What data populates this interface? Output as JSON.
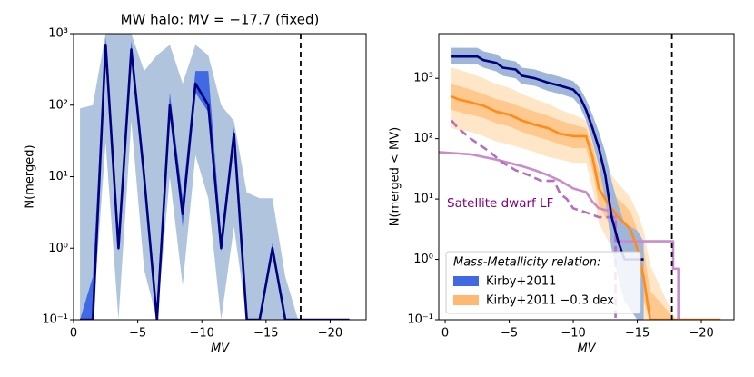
{
  "chart_data": [
    {
      "type": "line",
      "title": "MW halo: MV = −17.7 (fixed)",
      "xlabel": "MV",
      "ylabel": "N(merged)",
      "yscale": "log",
      "xlim": [
        0,
        -22.8
      ],
      "ylim": [
        0.1,
        1000
      ],
      "xticks": [
        0,
        {
          "value": -5,
          "label": "−5"
        },
        {
          "value": -10,
          "label": "−10"
        },
        {
          "value": -15,
          "label": "−15"
        },
        {
          "value": -20,
          "label": "−20"
        }
      ],
      "yticks": [
        {
          "value": 0.1,
          "label": "10⁻¹"
        },
        {
          "value": 1,
          "label": "10⁰"
        },
        {
          "value": 10,
          "label": "10¹"
        },
        {
          "value": 100,
          "label": "10²"
        },
        {
          "value": 1000,
          "label": "10³"
        }
      ],
      "vline": -17.7,
      "bands": [
        {
          "color": "#b0c4de",
          "x": [
            -0.5,
            -1.5,
            -2.5,
            -3.5,
            -4.5,
            -5.5,
            -6.5,
            -7.5,
            -8.5,
            -9.5,
            -10.5,
            -11.5,
            -12.5,
            -13.5,
            -14.5,
            -15.5,
            -16.5,
            -17.5,
            -18.5,
            -19.5,
            -20.5,
            -21.5
          ],
          "upper": [
            90,
            100,
            1000,
            1000,
            1000,
            300,
            500,
            700,
            200,
            700,
            500,
            100,
            60,
            6,
            5,
            5,
            0.4,
            0.1,
            0.1,
            0.1,
            0.1,
            0.1
          ],
          "lower": [
            0.1,
            0.1,
            30,
            0.1,
            60,
            0.5,
            0.1,
            10,
            0.3,
            20,
            5,
            0.1,
            2,
            0.1,
            0.1,
            0.1,
            0.1,
            0.1,
            0.1,
            0.1,
            0.1,
            0.1
          ]
        },
        {
          "color": "#4169e1",
          "x": [
            -0.5,
            -1.5,
            -2.5,
            -3.5,
            -4.5,
            -5.5,
            -6.5,
            -7.5,
            -8.5,
            -9.5,
            -10.5,
            -11.5,
            -12.5,
            -13.5,
            -14.5,
            -15.5,
            -16.5,
            -17.5,
            -18.5,
            -19.5,
            -20.5,
            -21.5
          ],
          "upper": [
            0.1,
            0.4,
            900,
            1.2,
            800,
            15,
            0.1,
            150,
            5,
            300,
            300,
            1.5,
            50,
            0.1,
            0.1,
            1.2,
            0.1,
            0.1,
            0.1,
            0.1,
            0.1,
            0.1
          ],
          "lower": [
            0.1,
            0.1,
            500,
            0.9,
            450,
            8,
            0.1,
            80,
            2,
            150,
            80,
            0.9,
            30,
            0.1,
            0.1,
            0.9,
            0.1,
            0.1,
            0.1,
            0.1,
            0.1,
            0.1
          ]
        }
      ],
      "series": [
        {
          "color": "#000080",
          "x": [
            -0.5,
            -1.5,
            -2.5,
            -3.5,
            -4.5,
            -5.5,
            -6.5,
            -7.5,
            -8.5,
            -9.5,
            -10.5,
            -11.5,
            -12.5,
            -13.5,
            -14.5,
            -15.5,
            -16.5,
            -17.5,
            -18.5,
            -19.5,
            -20.5,
            -21.5
          ],
          "values": [
            0.1,
            0.1,
            700,
            1,
            600,
            10,
            0.1,
            100,
            3,
            200,
            100,
            1,
            40,
            0.1,
            0.1,
            1,
            0.1,
            0.1,
            0.1,
            0.1,
            0.1,
            0.1
          ]
        }
      ]
    },
    {
      "type": "line",
      "xlabel": "MV",
      "ylabel": "N(merged < MV)",
      "yscale": "log",
      "xlim": [
        0.5,
        -22.55
      ],
      "ylim": [
        0.1,
        5500
      ],
      "xticks": [
        0,
        {
          "value": -5,
          "label": "−5"
        },
        {
          "value": -10,
          "label": "−10"
        },
        {
          "value": -15,
          "label": "−15"
        },
        {
          "value": -20,
          "label": "−20"
        }
      ],
      "yticks": [
        {
          "value": 0.1,
          "label": "10⁻¹"
        },
        {
          "value": 1,
          "label": "10⁰"
        },
        {
          "value": 10,
          "label": "10¹"
        },
        {
          "value": 100,
          "label": "10²"
        },
        {
          "value": 1000,
          "label": "10³"
        }
      ],
      "vline": -17.7,
      "annotation": "Satellite dwarf LF",
      "legend": {
        "title": "Mass-Metallicity relation:",
        "position": "lower left",
        "entries": [
          {
            "name": "Kirby+2011",
            "color": "#4169e1"
          },
          {
            "name": "Kirby+2011 −0.3 dex",
            "color": "#ffb870"
          }
        ]
      },
      "bands": [
        {
          "color": "#ffe6c7",
          "x": [
            -0.5,
            -1,
            -2,
            -3,
            -4,
            -5,
            -6,
            -7,
            -8,
            -9,
            -10,
            -11,
            -11.5,
            -12,
            -12.5,
            -13,
            -13.5,
            -14,
            -14.5,
            -15,
            -15.5,
            -16,
            -18,
            -21.5
          ],
          "upper": [
            1500,
            1400,
            1200,
            1000,
            800,
            700,
            550,
            450,
            380,
            300,
            250,
            200,
            120,
            50,
            35,
            25,
            18,
            14,
            10,
            6,
            3,
            0.8,
            0.1,
            0.1
          ],
          "lower": [
            150,
            140,
            130,
            110,
            90,
            80,
            70,
            60,
            50,
            45,
            40,
            40,
            15,
            4,
            2.5,
            1.5,
            1,
            0.8,
            0.5,
            0.2,
            0.1,
            0.1,
            0.1,
            0.1
          ]
        },
        {
          "color": "#ffc88f",
          "x": [
            -0.5,
            -1,
            -2,
            -3,
            -4,
            -5,
            -6,
            -7,
            -8,
            -9,
            -10,
            -11,
            -11.5,
            -12,
            -12.5,
            -13,
            -13.5,
            -14,
            -14.5,
            -15,
            -15.5,
            -16,
            -18,
            -21.5
          ],
          "upper": [
            800,
            750,
            650,
            550,
            450,
            400,
            330,
            280,
            240,
            200,
            170,
            150,
            80,
            30,
            20,
            14,
            10,
            8,
            6,
            3,
            1.5,
            0.3,
            0.1,
            0.1
          ],
          "lower": [
            300,
            280,
            250,
            220,
            180,
            160,
            130,
            110,
            95,
            80,
            70,
            70,
            30,
            8,
            5,
            3.5,
            2.5,
            2,
            1.5,
            0.7,
            0.2,
            0.1,
            0.1,
            0.1
          ]
        },
        {
          "color": "#9fb6d9",
          "x": [
            -0.5,
            -2.5,
            -3,
            -4,
            -4.5,
            -5.5,
            -6,
            -7,
            -8,
            -9,
            -10,
            -10.5,
            -11,
            -11.5,
            -12,
            -12.5,
            -13,
            -13.5,
            -14,
            -15,
            -15.5
          ],
          "upper": [
            3200,
            3200,
            2800,
            2500,
            2100,
            1900,
            1500,
            1400,
            1200,
            1050,
            900,
            700,
            450,
            250,
            130,
            60,
            20,
            8,
            4,
            3,
            2
          ],
          "lower": [
            1700,
            1700,
            1500,
            1300,
            1100,
            1000,
            800,
            750,
            620,
            550,
            470,
            350,
            200,
            90,
            35,
            10,
            1.5,
            0.5,
            0.2,
            0.1,
            0.1
          ]
        }
      ],
      "series": [
        {
          "color": "#c88ccd",
          "x": [
            0.5,
            -2,
            -4,
            -6,
            -7,
            -8,
            -9,
            -10,
            -11,
            -11.5,
            -12,
            -13.3,
            -13.3,
            -17.8,
            -17.8,
            -18.2,
            -18.2
          ],
          "values": [
            60,
            55,
            45,
            35,
            30,
            25,
            20,
            15,
            13,
            9,
            7,
            6,
            2,
            2,
            0.7,
            0.7,
            0.1
          ]
        },
        {
          "color": "#b56fbb",
          "dashed": true,
          "x": [
            -0.5,
            -1,
            -2,
            -3.5,
            -4.5,
            -5.5,
            -6.5,
            -7.5,
            -8.5,
            -9,
            -9.5,
            -10,
            -11,
            -12,
            -13.3,
            -13.3
          ],
          "values": [
            200,
            150,
            100,
            60,
            40,
            30,
            25,
            20,
            20,
            12,
            10,
            7,
            6,
            5,
            5,
            0.1
          ]
        },
        {
          "color": "#ff8c1a",
          "x": [
            -0.5,
            -1,
            -2,
            -3,
            -4,
            -5,
            -6,
            -7,
            -8,
            -9,
            -10,
            -11,
            -11.5,
            -12,
            -12.5,
            -13,
            -13.5,
            -14,
            -14.5,
            -15,
            -15.5,
            -16,
            -18,
            -21.5
          ],
          "values": [
            500,
            450,
            400,
            350,
            280,
            250,
            200,
            170,
            150,
            120,
            110,
            110,
            50,
            15,
            10,
            7,
            5,
            4,
            3,
            1.5,
            0.5,
            0.1,
            0.1,
            0.1
          ]
        },
        {
          "color": "#000080",
          "x": [
            -0.5,
            -2.5,
            -3,
            -4,
            -4.5,
            -5.5,
            -6,
            -7,
            -8,
            -9,
            -10,
            -10.5,
            -11,
            -11.5,
            -12,
            -12.5,
            -13,
            -13.5,
            -14,
            -15,
            -15.5
          ],
          "values": [
            2300,
            2300,
            2000,
            1800,
            1500,
            1400,
            1100,
            1000,
            850,
            750,
            650,
            500,
            300,
            150,
            70,
            25,
            5,
            2,
            1,
            1,
            1
          ]
        }
      ]
    }
  ]
}
